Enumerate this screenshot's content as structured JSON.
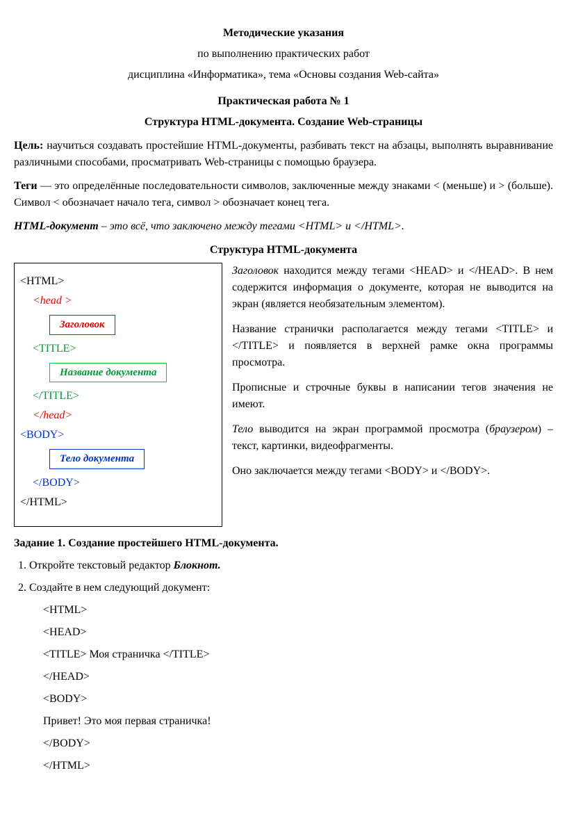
{
  "header": {
    "title1": "Методические указания",
    "title2": "по выполнению практических работ",
    "title3": "дисциплина «Информатика», тема «Основы создания Web-сайта»"
  },
  "practical": {
    "number": "Практическая работа № 1",
    "topic": "Структура HTML-документа. Создание Web-страницы"
  },
  "goal_label": "Цель:",
  "goal_text": " научиться создавать простейшие HTML-документы, разбивать текст на абзацы, выполнять выравнивание различными способами, просматривать  Web-страницы с помощью браузера.",
  "tags_label": "Теги",
  "tags_text": " — это определённые последовательности символов, заключенные между знаками < (меньше) и > (больше). Символ < обозначает начало тега, символ > обозначает конец тега.",
  "doc_label": "HTML-документ",
  "doc_text": " – это всё, что заключено между тегами <HTML> и </HTML>.",
  "structure_title": "Структура HTML-документа",
  "box": {
    "html_open": "<HTML>",
    "head_open": "<head >",
    "zagolovok": "Заголовок",
    "title_open": "<TITLE>",
    "nazvanie": "Название документа",
    "title_close": "</TITLE>",
    "head_close": "</head>",
    "body_open": "<BODY>",
    "telo": "Тело документа",
    "body_close": "</BODY>",
    "html_close": "</HTML>"
  },
  "rcol": {
    "p1a": "Заголовок",
    "p1b": " находится между тегами <HEAD> и </HEAD>. В нем содержится информация о документе, которая не выводится на экран (является необязатель­ным элементом).",
    "p2": "Название странички располагается между тегами <TITLE> и </TITLE> и появляется в верхней рамке окна программы просмотра.",
    "p3": "Прописные и строчные буквы в написании тегов значения не имеют.",
    "p4a": "Тело",
    "p4b": " выводится на экран программой просмотра (",
    "p4c": "браузером",
    "p4d": ") – текст, картинки, видеофрагменты.",
    "p5": "Оно  заключается между тегами <BODY> и </BODY>."
  },
  "task": {
    "title": "Задание 1. Создание простейшего HTML-документа.",
    "li1a": "Откройте текстовый редактор ",
    "li1b": "Блокнот.",
    "li2": "Создайте в нем следующий документ:",
    "code": {
      "l1": "<HTML>",
      "l2": "<HEAD>",
      "l3": "<TITLE> Моя страничка </TITLE>",
      "l4": "</HEAD>",
      "l5": "<BODY>",
      "l6": "Привет! Это моя первая страничка!",
      "l7": "</BODY>",
      "l8": "</HTML>"
    }
  }
}
